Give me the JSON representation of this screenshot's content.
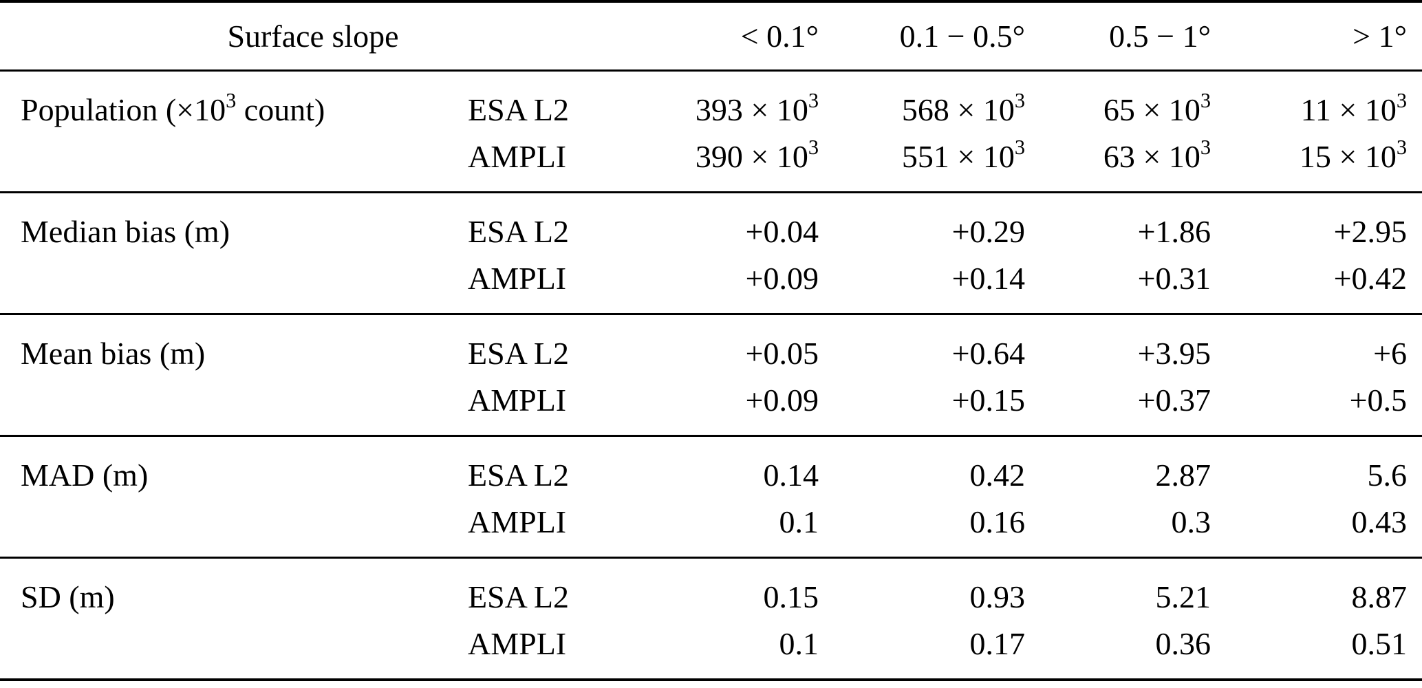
{
  "page": {
    "background_color": "#ffffff",
    "text_color": "#000000",
    "rule_color": "#000000"
  },
  "table": {
    "header": {
      "label": "Surface slope",
      "columns": [
        "< 0.1°",
        "0.1 − 0.5°",
        "0.5 − 1°",
        "> 1°"
      ]
    },
    "sections": [
      {
        "label": "Population (×10^3 count)",
        "rows": [
          {
            "source": "ESA L2",
            "values": [
              "393 × 10^3",
              "568 × 10^3",
              "65 × 10^3",
              "11 × 10^3"
            ]
          },
          {
            "source": "AMPLI",
            "values": [
              "390 × 10^3",
              "551 × 10^3",
              "63 × 10^3",
              "15 × 10^3"
            ]
          }
        ]
      },
      {
        "label": "Median bias (m)",
        "rows": [
          {
            "source": "ESA L2",
            "values": [
              "+0.04",
              "+0.29",
              "+1.86",
              "+2.95"
            ]
          },
          {
            "source": "AMPLI",
            "values": [
              "+0.09",
              "+0.14",
              "+0.31",
              "+0.42"
            ]
          }
        ]
      },
      {
        "label": "Mean bias (m)",
        "rows": [
          {
            "source": "ESA L2",
            "values": [
              "+0.05",
              "+0.64",
              "+3.95",
              "+6"
            ]
          },
          {
            "source": "AMPLI",
            "values": [
              "+0.09",
              "+0.15",
              "+0.37",
              "+0.5"
            ]
          }
        ]
      },
      {
        "label": "MAD (m)",
        "rows": [
          {
            "source": "ESA L2",
            "values": [
              "0.14",
              "0.42",
              "2.87",
              "5.6"
            ]
          },
          {
            "source": "AMPLI",
            "values": [
              "0.1",
              "0.16",
              "0.3",
              "0.43"
            ]
          }
        ]
      },
      {
        "label": "SD (m)",
        "rows": [
          {
            "source": "ESA L2",
            "values": [
              "0.15",
              "0.93",
              "5.21",
              "8.87"
            ]
          },
          {
            "source": "AMPLI",
            "values": [
              "0.1",
              "0.17",
              "0.36",
              "0.51"
            ]
          }
        ]
      }
    ]
  }
}
